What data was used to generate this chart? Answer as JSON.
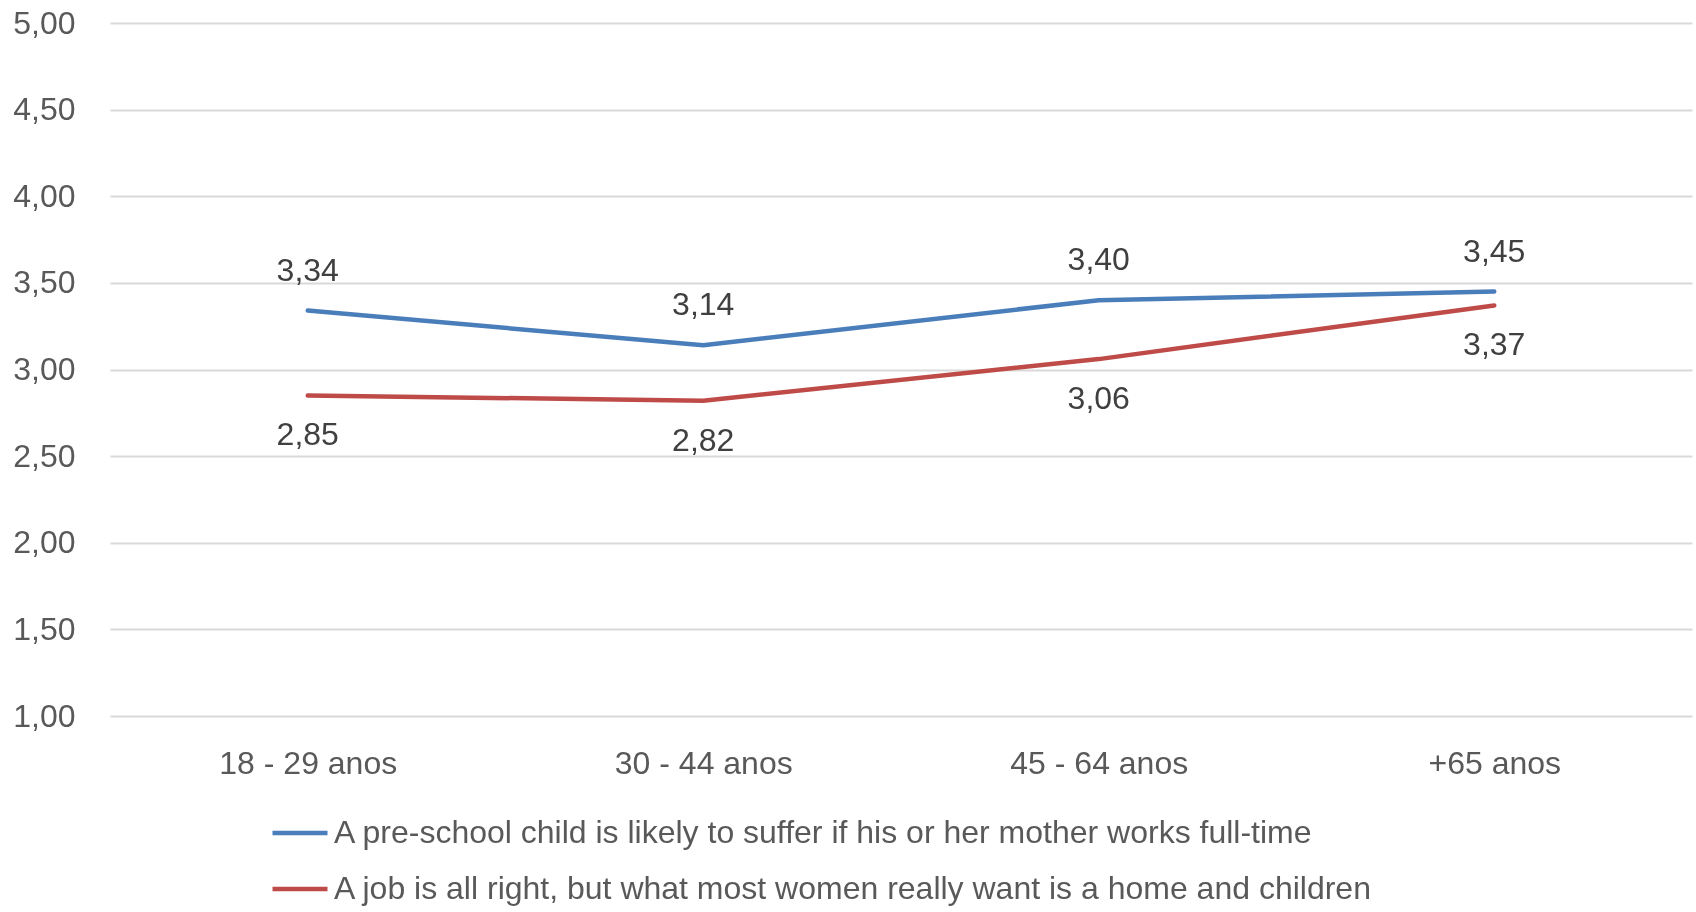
{
  "chart_data": {
    "type": "line",
    "categories": [
      "18 - 29 anos",
      "30 - 44 anos",
      "45 - 64 anos",
      "+65 anos"
    ],
    "series": [
      {
        "name": "A pre-school child is likely to suffer if his or her mother works full-time",
        "color": "#4a7ebb",
        "values": [
          3.34,
          3.14,
          3.4,
          3.45
        ],
        "value_labels": [
          "3,34",
          "3,14",
          "3,40",
          "3,45"
        ]
      },
      {
        "name": "A job is all right, but what most women really want is a home and children",
        "color": "#be4b48",
        "values": [
          2.85,
          2.82,
          3.06,
          3.37
        ],
        "value_labels": [
          "2,85",
          "2,82",
          "3,06",
          "3,37"
        ]
      }
    ],
    "ylim": [
      1,
      5
    ],
    "yticks": [
      {
        "value": 1,
        "label": "1,00"
      },
      {
        "value": 1.5,
        "label": "1,50"
      },
      {
        "value": 2,
        "label": "2,00"
      },
      {
        "value": 2.5,
        "label": "2,50"
      },
      {
        "value": 3,
        "label": "3,00"
      },
      {
        "value": 3.5,
        "label": "3,50"
      },
      {
        "value": 4,
        "label": "4,00"
      },
      {
        "value": 4.5,
        "label": "4,50"
      },
      {
        "value": 5,
        "label": "5,00"
      }
    ],
    "grid": "y",
    "legend": "bottom"
  }
}
